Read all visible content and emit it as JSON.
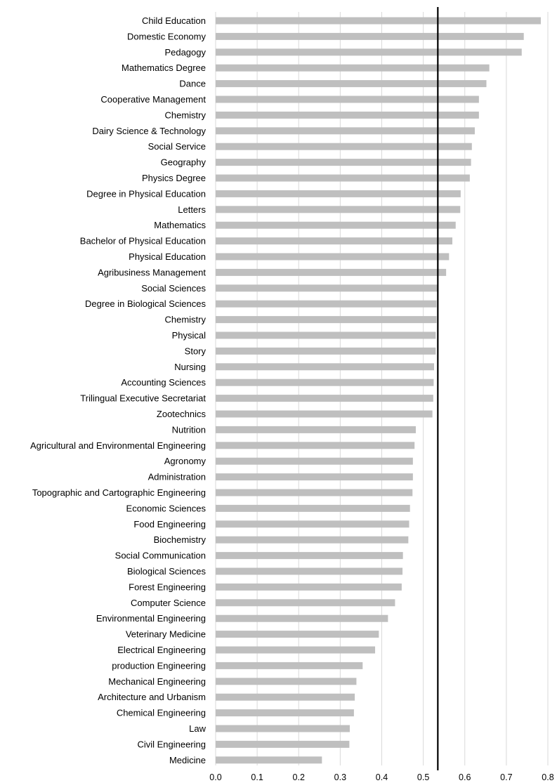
{
  "chart_data": {
    "type": "bar",
    "orientation": "horizontal",
    "title": "",
    "xlabel": "",
    "ylabel": "",
    "xlim": [
      0,
      0.8
    ],
    "x_ticks": [
      "0.0",
      "0.1",
      "0.2",
      "0.3",
      "0.4",
      "0.5",
      "0.6",
      "0.7",
      "0.8"
    ],
    "grid": "vertical",
    "bar_color": "#bfbfbf",
    "grid_color": "#d9d9d9",
    "reference_line": {
      "value": 0.535,
      "color": "#000000"
    },
    "categories": [
      "Child Education",
      "Domestic Economy",
      "Pedagogy",
      "Mathematics Degree",
      "Dance",
      "Cooperative Management",
      "Chemistry",
      "Dairy Science & Technology",
      "Social Service",
      "Geography",
      "Physics Degree",
      "Degree in Physical Education",
      "Letters",
      "Mathematics",
      "Bachelor of Physical Education",
      "Physical Education",
      "Agribusiness Management",
      "Social Sciences",
      "Degree in Biological Sciences",
      "Chemistry",
      "Physical",
      "Story",
      "Nursing",
      "Accounting Sciences",
      "Trilingual Executive Secretariat",
      "Zootechnics",
      "Nutrition",
      "Agricultural and Environmental Engineering",
      "Agronomy",
      "Administration",
      "Topographic and Cartographic Engineering",
      "Economic Sciences",
      "Food Engineering",
      "Biochemistry",
      "Social Communication",
      "Biological Sciences",
      "Forest Engineering",
      "Computer Science",
      "Environmental Engineering",
      "Veterinary Medicine",
      "Electrical Engineering",
      "production Engineering",
      "Mechanical Engineering",
      "Architecture and Urbanism",
      "Chemical Engineering",
      "Law",
      "Civil Engineering",
      "Medicine"
    ],
    "values": [
      0.783,
      0.742,
      0.737,
      0.659,
      0.652,
      0.634,
      0.634,
      0.624,
      0.617,
      0.615,
      0.612,
      0.59,
      0.589,
      0.578,
      0.57,
      0.562,
      0.555,
      0.534,
      0.532,
      0.532,
      0.53,
      0.53,
      0.526,
      0.525,
      0.524,
      0.522,
      0.482,
      0.479,
      0.475,
      0.475,
      0.474,
      0.468,
      0.466,
      0.464,
      0.451,
      0.45,
      0.448,
      0.432,
      0.415,
      0.393,
      0.384,
      0.354,
      0.339,
      0.335,
      0.333,
      0.323,
      0.322,
      0.256
    ]
  }
}
